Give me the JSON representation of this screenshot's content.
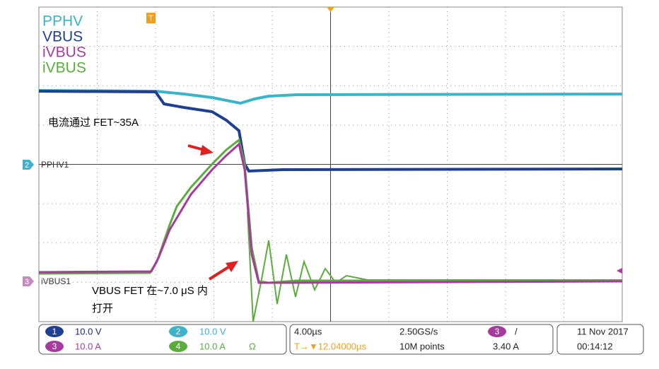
{
  "legend": [
    "PPHV",
    "VBUS",
    "iVBUS",
    "iVBUS"
  ],
  "trigger_marker": "T",
  "channel_markers": {
    "pphv": "PPHV1",
    "ivbus": "iVBUS1",
    "ch2": "2",
    "ch3": "3"
  },
  "annotations": {
    "current": "电流通过 FET~35A",
    "turn_on_line1": "VBUS FET 在~7.0 μS 内",
    "turn_on_line2": "打开"
  },
  "channels": [
    {
      "number": "1",
      "scale": "10.0 V"
    },
    {
      "number": "2",
      "scale": "10.0 V"
    },
    {
      "number": "3",
      "scale": "10.0 A"
    },
    {
      "number": "4",
      "scale": "10.0 A",
      "extra": "Ω"
    }
  ],
  "timebase": {
    "scale": "4.00µs",
    "sample_rate": "2.50GS/s",
    "trigger_channel": "3",
    "trigger_slope": "/",
    "trigger_position": "T→▼12.04000µs",
    "record_length": "10M points",
    "trigger_level": "3.40 A"
  },
  "datetime": {
    "date": "11 Nov 2017",
    "time": "00:14:12"
  }
}
